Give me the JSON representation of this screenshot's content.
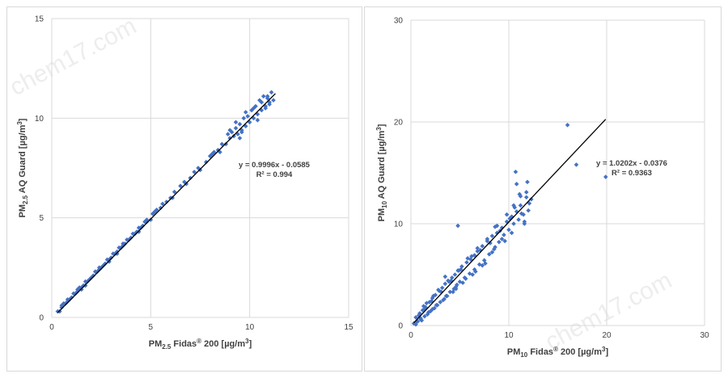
{
  "watermark": "chem17.com",
  "chart_data": [
    {
      "type": "scatter",
      "xlim": [
        0,
        15
      ],
      "ylim": [
        0,
        15
      ],
      "xticks": [
        "0",
        "5",
        "10",
        "15"
      ],
      "yticks": [
        "0",
        "5",
        "10",
        "15"
      ],
      "grid": true,
      "xlabel": {
        "pre": "PM",
        "sub": "2.5",
        "post": " Fidas",
        "sup": "®",
        "post2": " 200  [µg/m",
        "sup2": "3",
        "end": "]"
      },
      "ylabel": {
        "pre": "PM",
        "sub": "2.5",
        "post": " AQ Guard [µg/m",
        "sup": "3",
        "end": "]"
      },
      "equation": "y = 0.9996x - 0.0585",
      "r2": "R² = 0.994",
      "trendline": {
        "slope": 0.9996,
        "intercept": -0.0585,
        "x_range": [
          0.3,
          11.3
        ]
      },
      "marker_color": "#4472c4",
      "series": [
        {
          "x": [
            0.3,
            0.4,
            0.5,
            0.6,
            0.7,
            0.8,
            0.9,
            1.0,
            1.1,
            1.2,
            1.3,
            1.4,
            1.5,
            1.6,
            1.7,
            1.8,
            1.9,
            2.0,
            2.1,
            2.2,
            2.3,
            2.4,
            2.5,
            2.6,
            2.7,
            2.8,
            2.9,
            3.0,
            3.1,
            3.2,
            3.3,
            3.4,
            3.5,
            3.6,
            3.7,
            3.8,
            3.9,
            4.0,
            4.1,
            4.2,
            4.3,
            4.4,
            4.5,
            4.6,
            4.7,
            4.8,
            5.0,
            5.1,
            5.3,
            5.5,
            5.6,
            5.8,
            6.0,
            6.2,
            6.5,
            6.7,
            7.0,
            7.2,
            7.5,
            7.8,
            8.0,
            8.2,
            8.4,
            8.6,
            8.8,
            9.0,
            9.1,
            9.2,
            9.3,
            9.4,
            9.5,
            9.6,
            9.7,
            9.8,
            9.9,
            10.0,
            10.1,
            10.2,
            10.3,
            10.4,
            10.5,
            10.6,
            10.7,
            10.8,
            10.9,
            11.0,
            11.1,
            11.2,
            0.8,
            1.3,
            1.7,
            2.4,
            2.9,
            3.6,
            4.4,
            5.2,
            6.1,
            7.4,
            8.5,
            9.0,
            9.6,
            10.2,
            10.8,
            9.3,
            9.8,
            10.4,
            11.0,
            8.9,
            0.5,
            1.5,
            2.2,
            3.3,
            4.8,
            6.8,
            8.1,
            9.5,
            10.6,
            10.9
          ],
          "y": [
            0.3,
            0.3,
            0.5,
            0.7,
            0.7,
            0.8,
            0.9,
            1.0,
            1.2,
            1.2,
            1.3,
            1.5,
            1.5,
            1.6,
            1.8,
            1.8,
            1.9,
            2.0,
            2.1,
            2.3,
            2.3,
            2.4,
            2.5,
            2.6,
            2.7,
            2.9,
            2.9,
            3.0,
            3.2,
            3.2,
            3.3,
            3.5,
            3.5,
            3.6,
            3.7,
            3.9,
            3.9,
            4.0,
            4.2,
            4.2,
            4.3,
            4.5,
            4.5,
            4.6,
            4.8,
            4.8,
            4.9,
            5.2,
            5.4,
            5.5,
            5.7,
            5.8,
            6.0,
            6.3,
            6.6,
            6.8,
            7.0,
            7.3,
            7.4,
            7.8,
            8.1,
            8.3,
            8.4,
            8.7,
            8.7,
            9.0,
            9.3,
            9.1,
            9.5,
            9.2,
            9.7,
            9.4,
            10.0,
            9.6,
            10.1,
            9.8,
            10.4,
            10.0,
            10.6,
            10.2,
            10.9,
            10.4,
            11.1,
            10.6,
            11.0,
            10.8,
            11.3,
            10.9,
            0.9,
            1.4,
            1.6,
            2.5,
            2.8,
            3.7,
            4.3,
            5.3,
            6.0,
            7.5,
            8.3,
            9.4,
            9.3,
            10.5,
            10.5,
            9.8,
            10.3,
            9.9,
            10.7,
            9.2,
            0.6,
            1.4,
            2.3,
            3.2,
            4.9,
            6.7,
            8.2,
            9.0,
            10.8,
            11.1
          ]
        }
      ]
    },
    {
      "type": "scatter",
      "xlim": [
        0,
        30
      ],
      "ylim": [
        0,
        30
      ],
      "xticks": [
        "0",
        "10",
        "20",
        "30"
      ],
      "yticks": [
        "0",
        "10",
        "20",
        "30"
      ],
      "grid": true,
      "xlabel": {
        "pre": "PM",
        "sub": "10",
        "post": " Fidas",
        "sup": "®",
        "post2": " 200  [µg/m",
        "sup2": "3",
        "end": "]"
      },
      "ylabel": {
        "pre": "PM",
        "sub": "10",
        "post": " AQ Guard [µg/m",
        "sup": "3",
        "end": "]"
      },
      "equation": "y = 1.0202x - 0.0376",
      "r2": "R² = 0.9363",
      "trendline": {
        "slope": 1.0202,
        "intercept": -0.0376,
        "x_range": [
          0.3,
          19.9
        ]
      },
      "marker_color": "#4472c4",
      "series": [
        {
          "x": [
            0.3,
            0.5,
            0.7,
            0.9,
            1.0,
            1.2,
            1.4,
            1.5,
            1.7,
            1.9,
            2.0,
            2.2,
            2.4,
            2.5,
            2.7,
            2.9,
            3.0,
            3.2,
            3.4,
            3.5,
            3.7,
            3.9,
            4.0,
            4.2,
            4.4,
            4.5,
            4.7,
            4.9,
            5.0,
            5.2,
            5.5,
            5.7,
            6.0,
            6.2,
            6.5,
            6.8,
            7.0,
            7.3,
            7.5,
            7.8,
            8.0,
            8.3,
            8.5,
            8.8,
            9.0,
            9.3,
            9.5,
            9.8,
            10.0,
            10.3,
            10.5,
            10.8,
            11.0,
            11.2,
            11.5,
            11.8,
            12.0,
            12.3,
            0.5,
            0.8,
            1.1,
            1.4,
            1.8,
            2.1,
            2.6,
            3.1,
            3.6,
            4.1,
            4.6,
            5.1,
            5.6,
            6.1,
            6.6,
            7.1,
            7.6,
            8.1,
            8.6,
            9.1,
            9.6,
            10.1,
            10.6,
            11.1,
            11.6,
            12.1,
            0.6,
            1.0,
            1.6,
            2.2,
            2.8,
            3.3,
            3.8,
            4.3,
            4.8,
            5.3,
            5.8,
            6.3,
            6.8,
            7.3,
            7.8,
            8.3,
            8.8,
            9.3,
            9.8,
            10.3,
            10.8,
            11.3,
            11.8,
            1.3,
            2.3,
            3.5,
            4.6,
            6.5,
            8.6,
            10.5,
            11.2,
            11.9,
            10.7,
            11.6,
            4.8,
            16.0,
            16.9,
            19.9
          ],
          "y": [
            0.2,
            0.8,
            0.4,
            1.2,
            0.6,
            1.5,
            0.9,
            1.8,
            1.1,
            2.3,
            1.4,
            2.7,
            1.7,
            3.0,
            2.0,
            3.4,
            2.3,
            3.7,
            2.6,
            4.1,
            2.9,
            4.3,
            3.3,
            4.7,
            3.6,
            5.0,
            4.0,
            5.4,
            4.3,
            5.8,
            4.7,
            6.2,
            5.1,
            6.8,
            5.5,
            7.3,
            6.0,
            7.8,
            6.4,
            8.3,
            7.0,
            8.8,
            7.5,
            9.1,
            8.2,
            9.6,
            8.9,
            10.2,
            9.4,
            10.7,
            10.0,
            11.2,
            10.4,
            11.8,
            10.9,
            12.6,
            11.3,
            12.4,
            0.1,
            1.0,
            0.5,
            1.6,
            1.3,
            2.4,
            2.0,
            3.3,
            2.9,
            4.4,
            3.8,
            5.5,
            4.6,
            6.5,
            5.3,
            7.4,
            6.1,
            8.1,
            7.7,
            9.3,
            8.3,
            10.5,
            11.6,
            12.9,
            10.2,
            12.0,
            0.4,
            0.7,
            2.2,
            1.6,
            3.5,
            2.5,
            4.4,
            3.3,
            5.4,
            4.2,
            6.6,
            5.0,
            7.6,
            5.9,
            8.5,
            7.2,
            9.8,
            8.5,
            10.9,
            9.1,
            13.9,
            11.0,
            13.1,
            1.9,
            2.9,
            4.8,
            3.6,
            6.9,
            9.7,
            11.8,
            12.7,
            14.1,
            15.1,
            10.0,
            9.8,
            19.7,
            15.8,
            14.6
          ]
        }
      ]
    }
  ]
}
